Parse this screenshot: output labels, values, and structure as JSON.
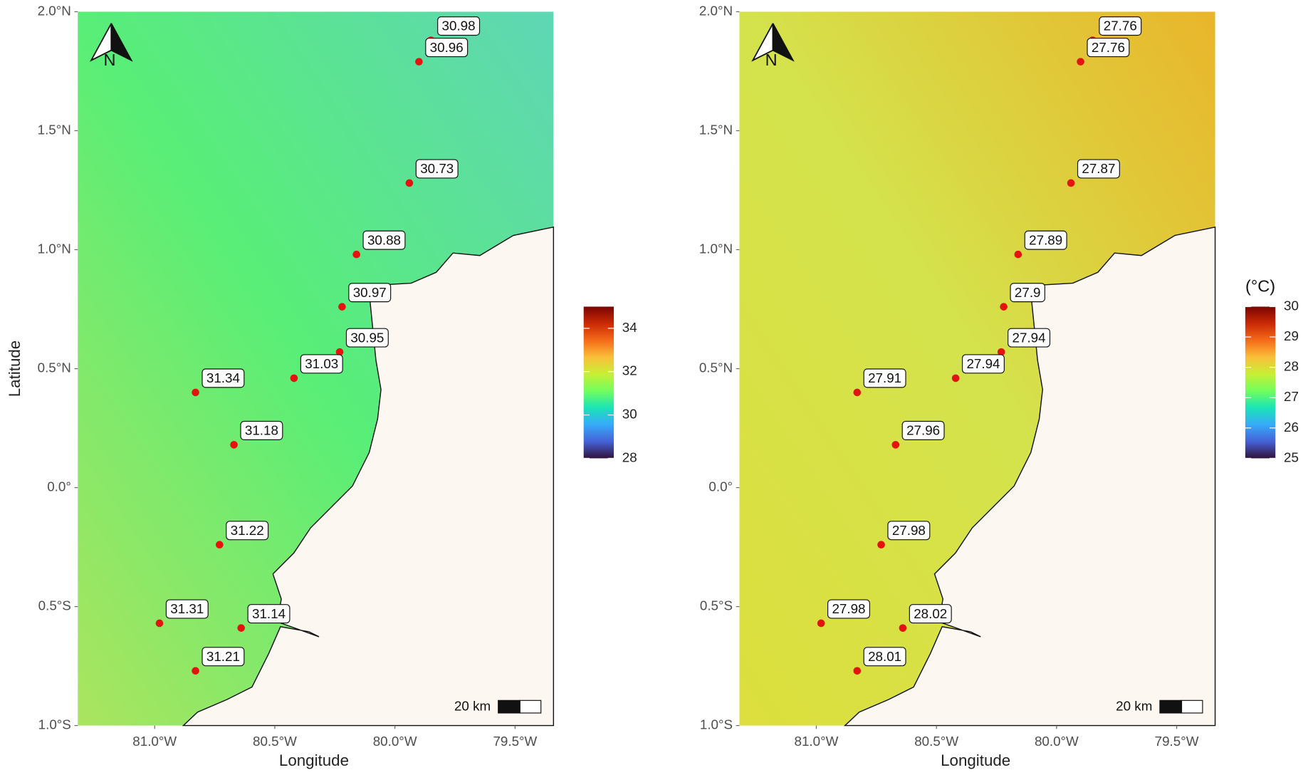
{
  "panels": [
    {
      "xlim": [
        -81.32,
        -79.34
      ],
      "ylim": [
        -1,
        2
      ],
      "xticks": [
        {
          "value": -81,
          "label": "81.0°W"
        },
        {
          "value": -80.5,
          "label": "80.5°W"
        },
        {
          "value": -80,
          "label": "80.0°W"
        },
        {
          "value": -79.5,
          "label": "79.5°W"
        }
      ],
      "yticks": [
        {
          "value": 2,
          "label": "2.0°N"
        },
        {
          "value": 1.5,
          "label": "1.5°N"
        },
        {
          "value": 1,
          "label": "1.0°N"
        },
        {
          "value": 0.5,
          "label": "0.5°N"
        },
        {
          "value": 0,
          "label": "0.0°"
        },
        {
          "value": -0.5,
          "label": "0.5°S"
        },
        {
          "value": -1,
          "label": "1.0°S"
        }
      ],
      "x_label": "Longitude",
      "y_label": "Latitude",
      "north_label": "N",
      "scale_label": "20 km",
      "field_colors": [
        "#abe45e",
        "#58ee77",
        "#5fd6b5"
      ],
      "points": {
        "lon": [
          -79.85,
          -79.9,
          -79.94,
          -80.16,
          -80.22,
          -80.23,
          -80.42,
          -80.83,
          -80.67,
          -80.73,
          -80.98,
          -80.64,
          -80.83
        ],
        "lat": [
          1.88,
          1.79,
          1.28,
          0.98,
          0.76,
          0.57,
          0.46,
          0.4,
          0.18,
          -0.24,
          -0.57,
          -0.59,
          -0.77
        ],
        "values": [
          30.98,
          30.96,
          30.73,
          30.88,
          30.97,
          30.95,
          31.03,
          31.34,
          31.18,
          31.22,
          31.31,
          31.14,
          31.21
        ]
      },
      "point_color": "#e3140f",
      "colorbar": {
        "lim": [
          28,
          35
        ],
        "ticks": [
          28,
          30,
          32,
          34
        ],
        "colors": [
          "#30123b",
          "#4662d7",
          "#36aaf9",
          "#1ae4b6",
          "#72fe5e",
          "#c7ef34",
          "#fabf3a",
          "#f66b19",
          "#ca2a04",
          "#7a0403"
        ]
      }
    },
    {
      "xlim": [
        -81.32,
        -79.34
      ],
      "ylim": [
        -1,
        2
      ],
      "xticks": [
        {
          "value": -81,
          "label": "81.0°W"
        },
        {
          "value": -80.5,
          "label": "80.5°W"
        },
        {
          "value": -80,
          "label": "80.0°W"
        },
        {
          "value": -79.5,
          "label": "79.5°W"
        }
      ],
      "yticks": [
        {
          "value": 2,
          "label": "2.0°N"
        },
        {
          "value": 1.5,
          "label": "1.5°N"
        },
        {
          "value": 1,
          "label": "1.0°N"
        },
        {
          "value": 0.5,
          "label": "0.5°N"
        },
        {
          "value": 0,
          "label": "0.0°"
        },
        {
          "value": -0.5,
          "label": "0.5°S"
        },
        {
          "value": -1,
          "label": "1.0°S"
        }
      ],
      "x_label": "Longitude",
      "north_label": "N",
      "scale_label": "20 km",
      "field_colors": [
        "#dcdf3d",
        "#d4e34c",
        "#e9b52b"
      ],
      "points": {
        "lon": [
          -79.85,
          -79.9,
          -79.94,
          -80.16,
          -80.22,
          -80.23,
          -80.42,
          -80.83,
          -80.67,
          -80.73,
          -80.98,
          -80.64,
          -80.83
        ],
        "lat": [
          1.88,
          1.79,
          1.28,
          0.98,
          0.76,
          0.57,
          0.46,
          0.4,
          0.18,
          -0.24,
          -0.57,
          -0.59,
          -0.77
        ],
        "values": [
          27.76,
          27.76,
          27.87,
          27.89,
          27.9,
          27.94,
          27.94,
          27.91,
          27.96,
          27.98,
          27.98,
          28.02,
          28.01
        ]
      },
      "point_color": "#e3140f",
      "colorbar": {
        "title": "(°C)",
        "lim": [
          25,
          30
        ],
        "ticks": [
          25,
          26,
          27,
          28,
          29,
          30
        ],
        "colors": [
          "#30123b",
          "#4662d7",
          "#36aaf9",
          "#1ae4b6",
          "#72fe5e",
          "#c7ef34",
          "#fabf3a",
          "#f66b19",
          "#ca2a04",
          "#7a0403"
        ]
      }
    }
  ]
}
